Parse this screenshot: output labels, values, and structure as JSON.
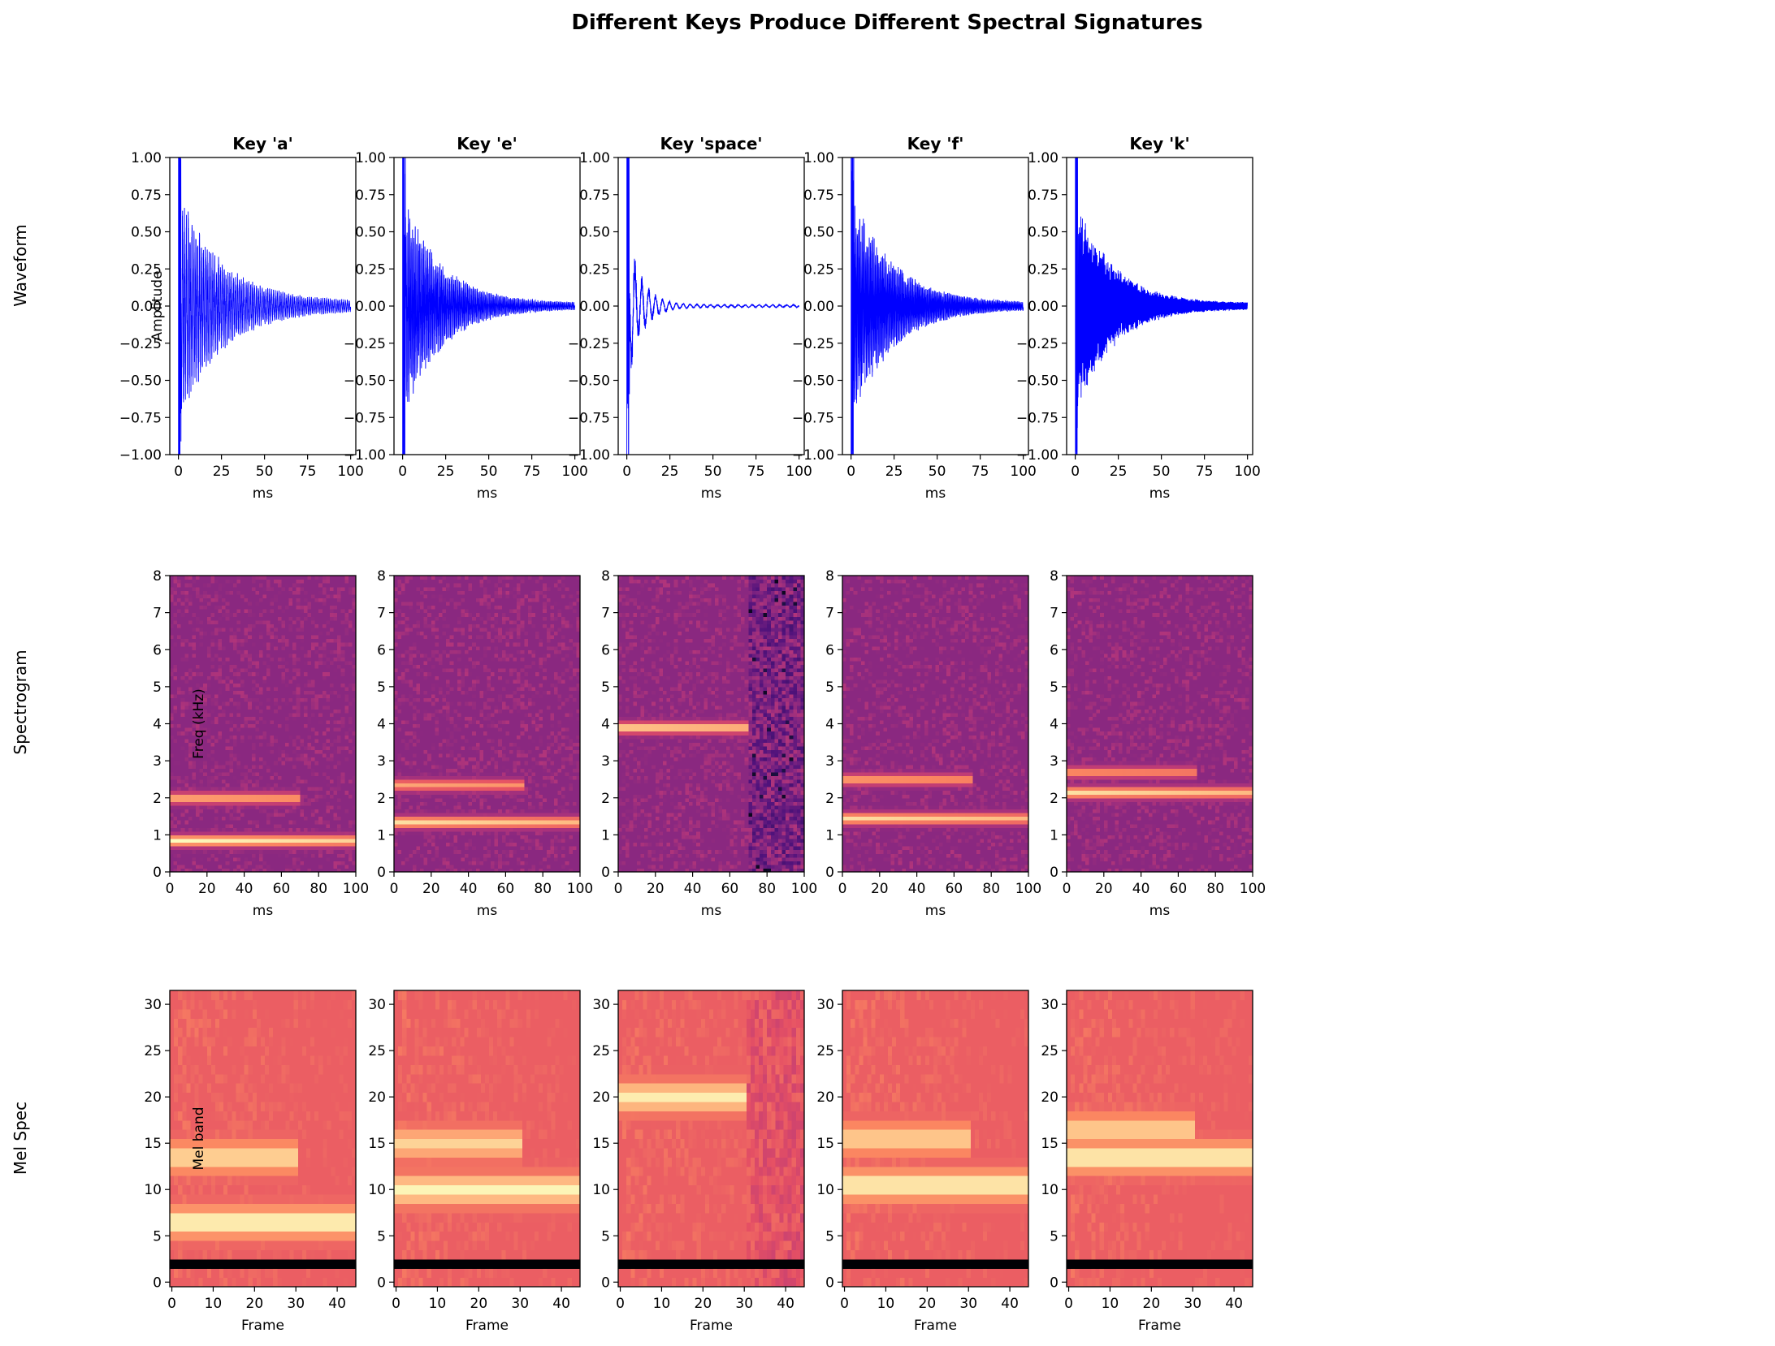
{
  "figure": {
    "title": "Different Keys Produce Different Spectral Signatures",
    "row_labels": [
      "Waveform",
      "Spectrogram",
      "Mel Spec"
    ]
  },
  "colors": {
    "waveform_line": "#0000ff",
    "colormap": "magma"
  },
  "chart_data": [
    {
      "type": "line",
      "row": "Waveform",
      "ylabel": "Amplitude",
      "xlabel": "ms",
      "xlim": [
        -5,
        103
      ],
      "ylim": [
        -1.0,
        1.0
      ],
      "xticks": [
        "0",
        "25",
        "50",
        "75",
        "100"
      ],
      "yticks": [
        "−1.00",
        "−0.75",
        "−0.50",
        "−0.25",
        "0.00",
        "0.25",
        "0.50",
        "0.75",
        "1.00"
      ],
      "series": [
        {
          "key": "Key 'a'",
          "peak": 0.78,
          "decay_ms": 25,
          "period_ms": 1.1,
          "end_amp": 0.03
        },
        {
          "key": "Key 'e'",
          "peak": 0.76,
          "decay_ms": 22,
          "period_ms": 0.8,
          "end_amp": 0.02
        },
        {
          "key": "Key 'space'",
          "peak": 0.58,
          "decay_ms": 8,
          "period_ms": 4.0,
          "end_amp": 0.01
        },
        {
          "key": "Key 'f'",
          "peak": 0.77,
          "decay_ms": 24,
          "period_ms": 0.7,
          "end_amp": 0.02
        },
        {
          "key": "Key 'k'",
          "peak": 0.75,
          "decay_ms": 21,
          "period_ms": 0.45,
          "end_amp": 0.02
        }
      ]
    },
    {
      "type": "heatmap",
      "row": "Spectrogram",
      "ylabel": "Freq (kHz)",
      "xlabel": "ms",
      "xlim": [
        0,
        100
      ],
      "ylim": [
        0,
        8
      ],
      "xticks": [
        "0",
        "20",
        "40",
        "60",
        "80",
        "100"
      ],
      "yticks": [
        "0",
        "1",
        "2",
        "3",
        "4",
        "5",
        "6",
        "7",
        "8"
      ],
      "series": [
        {
          "key": "Key 'a'",
          "bands_khz": [
            [
              0.85,
              1.0
            ],
            [
              2.0,
              0.75
            ]
          ]
        },
        {
          "key": "Key 'e'",
          "bands_khz": [
            [
              1.35,
              0.9
            ],
            [
              2.35,
              0.7
            ]
          ]
        },
        {
          "key": "Key 'space'",
          "bands_khz": [
            [
              3.9,
              0.9
            ]
          ]
        },
        {
          "key": "Key 'f'",
          "bands_khz": [
            [
              1.45,
              0.9
            ],
            [
              2.5,
              0.7
            ]
          ]
        },
        {
          "key": "Key 'k'",
          "bands_khz": [
            [
              2.15,
              0.9
            ],
            [
              2.7,
              0.65
            ]
          ]
        }
      ]
    },
    {
      "type": "heatmap",
      "row": "Mel Spec",
      "ylabel": "Mel band",
      "xlabel": "Frame",
      "xlim": [
        -0.5,
        44.5
      ],
      "ylim": [
        -0.5,
        31.5
      ],
      "xticks": [
        "0",
        "10",
        "20",
        "30",
        "40"
      ],
      "yticks": [
        "0",
        "5",
        "10",
        "15",
        "20",
        "25",
        "30"
      ],
      "series": [
        {
          "key": "Key 'a'",
          "bands_mel": [
            [
              6.5,
              1.0
            ],
            [
              13.5,
              0.8
            ]
          ]
        },
        {
          "key": "Key 'e'",
          "bands_mel": [
            [
              10,
              0.95
            ],
            [
              15,
              0.75
            ]
          ]
        },
        {
          "key": "Key 'space'",
          "bands_mel": [
            [
              20,
              0.9
            ]
          ]
        },
        {
          "key": "Key 'f'",
          "bands_mel": [
            [
              10.5,
              0.95
            ],
            [
              15.5,
              0.75
            ]
          ]
        },
        {
          "key": "Key 'k'",
          "bands_mel": [
            [
              13.5,
              0.95
            ],
            [
              16.5,
              0.75
            ]
          ]
        }
      ]
    }
  ]
}
